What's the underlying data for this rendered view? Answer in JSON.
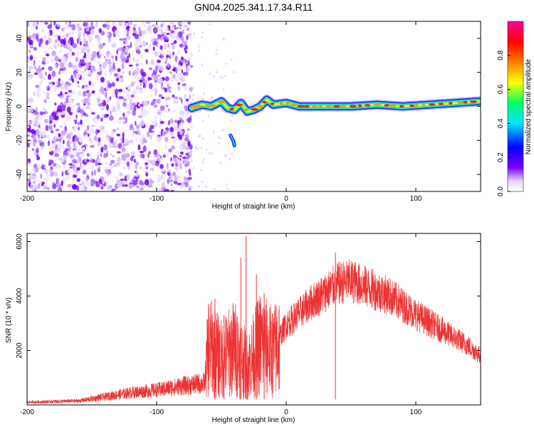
{
  "title": "GN04.2025.341.17.34.R11",
  "chart_data": [
    {
      "type": "heatmap",
      "xlabel": "Height of straight line (km)",
      "ylabel": "Frequency (Hz)",
      "xlim": [
        -200,
        150
      ],
      "ylim": [
        -50,
        50
      ],
      "x_ticks": [
        -200,
        -100,
        0,
        100
      ],
      "x_tick_labels": [
        "-200",
        "-100",
        "0",
        "100"
      ],
      "y_ticks": [
        -40,
        -20,
        0,
        20,
        40
      ],
      "y_tick_labels": [
        "-40",
        "-20",
        "0",
        "20",
        "40"
      ],
      "noise_region_x": [
        -200,
        -73
      ],
      "ridge": {
        "x": [
          -73,
          -65,
          -58,
          -50,
          -45,
          -40,
          -35,
          -30,
          -25,
          -20,
          -15,
          -10,
          0,
          10,
          30,
          50,
          70,
          90,
          110,
          130,
          150
        ],
        "freq": [
          -1,
          1,
          0,
          3,
          -1,
          -2,
          2,
          -3,
          -2,
          0,
          4,
          1,
          2,
          0,
          0,
          0,
          1,
          0,
          1,
          2,
          3
        ]
      },
      "side_feature": {
        "x": [
          -43,
          -41,
          -40
        ],
        "freq": [
          -17,
          -20,
          -23
        ]
      },
      "colorbar": {
        "label": "Normalized spectral amplitude",
        "range": [
          0,
          1
        ],
        "ticks": [
          0.0,
          0.2,
          0.4,
          0.6,
          0.8
        ],
        "tick_labels": [
          "0.0",
          "0.2",
          "0.4",
          "0.6",
          "0.8"
        ],
        "colors": [
          "#ffffff",
          "#7b00ff",
          "#0000ff",
          "#00e5ff",
          "#00ff66",
          "#ffff00",
          "#ff7f00",
          "#ff0000",
          "#ff00a0"
        ]
      }
    },
    {
      "type": "line",
      "xlabel": "Height of straight line (km)",
      "ylabel": "SNR (10 * v/v)",
      "xlim": [
        -200,
        150
      ],
      "ylim": [
        0,
        6300
      ],
      "x_ticks": [
        -200,
        -100,
        0,
        100
      ],
      "x_tick_labels": [
        "-200",
        "-100",
        "0",
        "100"
      ],
      "y_ticks": [
        2000,
        4000,
        6000
      ],
      "y_tick_labels": [
        "2000",
        "4000",
        "6000"
      ],
      "color": "#ee3333",
      "envelope": {
        "x": [
          -200,
          -160,
          -140,
          -120,
          -100,
          -80,
          -63,
          -60,
          -50,
          -40,
          -30,
          -20,
          -10,
          0,
          20,
          40,
          50,
          60,
          80,
          100,
          120,
          140,
          150
        ],
        "y": [
          100,
          150,
          300,
          450,
          550,
          700,
          800,
          2500,
          1900,
          2400,
          1600,
          2600,
          2200,
          3100,
          4000,
          4700,
          4800,
          4600,
          4200,
          3500,
          2900,
          2300,
          1900
        ]
      },
      "spikes": [
        {
          "x": -55,
          "y": 3900
        },
        {
          "x": -48,
          "y": 3300
        },
        {
          "x": -35,
          "y": 5400
        },
        {
          "x": -31,
          "y": 6200
        },
        {
          "x": -23,
          "y": 4800
        },
        {
          "x": -17,
          "y": 4100
        },
        {
          "x": 38,
          "y": 5600
        }
      ]
    }
  ]
}
